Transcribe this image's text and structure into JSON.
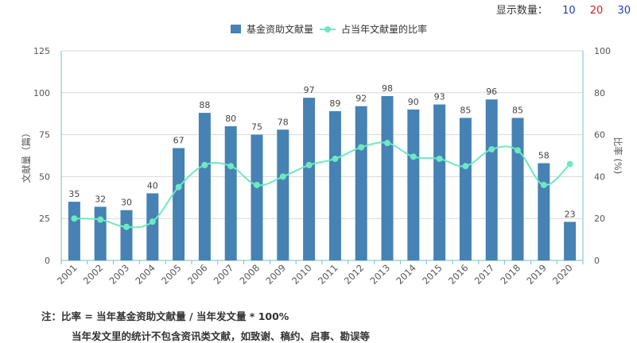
{
  "display_count": {
    "label": "显示数量：",
    "options": [
      "10",
      "20",
      "30"
    ],
    "option_colors": [
      "#1f3fbf",
      "#d61f1f",
      "#1f3fbf"
    ]
  },
  "chart_data": {
    "type": "bar",
    "categories": [
      "2001",
      "2002",
      "2003",
      "2004",
      "2005",
      "2006",
      "2007",
      "2008",
      "2009",
      "2010",
      "2011",
      "2012",
      "2013",
      "2014",
      "2015",
      "2016",
      "2017",
      "2018",
      "2019",
      "2020"
    ],
    "series": [
      {
        "name": "基金资助文献量",
        "type": "bar",
        "axis": "left",
        "color": "#4682b4",
        "values": [
          35,
          32,
          30,
          40,
          67,
          88,
          80,
          75,
          78,
          97,
          89,
          92,
          98,
          90,
          93,
          85,
          96,
          85,
          58,
          23
        ]
      },
      {
        "name": "占当年文献量的比率",
        "type": "line",
        "axis": "right",
        "color": "#6fe8c0",
        "values": [
          20,
          19.5,
          16,
          18.5,
          35,
          45.5,
          45,
          36,
          40,
          45.5,
          48.5,
          54,
          56,
          49.5,
          48.5,
          45,
          53,
          52.5,
          36,
          46
        ]
      }
    ],
    "ylabel": "文献量（篇）",
    "y2label": "比率 (%)",
    "ylim": [
      0,
      125
    ],
    "yticks": [
      0,
      25,
      50,
      75,
      100,
      125
    ],
    "y2lim": [
      0,
      100
    ],
    "y2ticks": [
      0,
      20,
      40,
      60,
      80,
      100
    ],
    "grid": true,
    "legend": "top-center"
  },
  "notes": {
    "line1": "注：比率 = 当年基金资助文献量 / 当年发文量 * 100%",
    "line2": "当年发文里的统计不包含资讯类文献，如致谢、稿约、启事、勘误等"
  }
}
